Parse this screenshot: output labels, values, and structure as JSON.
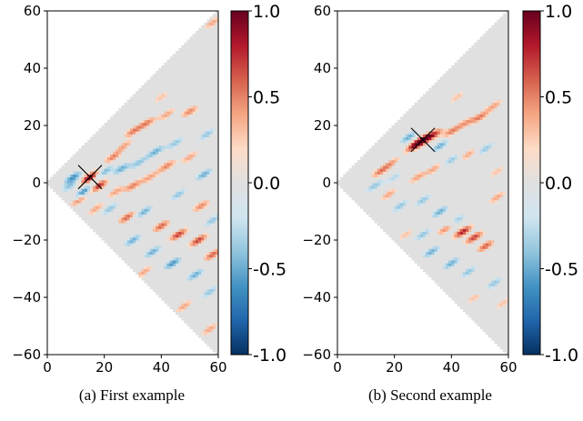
{
  "figure": {
    "captions": [
      "(a) First example",
      "(b) Second example"
    ]
  },
  "colormap": {
    "name": "RdBu_r",
    "stops": [
      "#053061",
      "#2166ac",
      "#4393c3",
      "#92c5de",
      "#d1e5f0",
      "#e0e0e0",
      "#fddbc7",
      "#f4a582",
      "#d6604d",
      "#b2182b",
      "#67001f"
    ],
    "neutral": "#e0e0e0"
  },
  "chart_data": [
    {
      "type": "heatmap",
      "caption": "(a) First example",
      "xlim": [
        0,
        60
      ],
      "ylim": [
        -60,
        60
      ],
      "xticks": [
        "0",
        "20",
        "40",
        "60"
      ],
      "yticks": [
        "60",
        "40",
        "20",
        "0",
        "-20",
        "-40",
        "-60"
      ],
      "colorbar": {
        "range": [
          -1.0,
          1.0
        ],
        "ticks": [
          "1.0",
          "0.5",
          "0.0",
          "-0.5",
          "-1.0"
        ]
      },
      "domain": "wedge |y| <= x",
      "marker": {
        "x": 15,
        "y": 2,
        "value": 1.0
      },
      "blobs": [
        {
          "x": 15,
          "y": 2,
          "v": 1.0
        },
        {
          "x": 18,
          "y": -1,
          "v": 0.8
        },
        {
          "x": 13,
          "y": -3,
          "v": -0.7
        },
        {
          "x": 9,
          "y": 2,
          "v": -0.6
        },
        {
          "x": 11,
          "y": -6,
          "v": 0.5
        },
        {
          "x": 20,
          "y": 4,
          "v": -0.5
        },
        {
          "x": 23,
          "y": 9,
          "v": 0.5
        },
        {
          "x": 27,
          "y": 13,
          "v": 0.4
        },
        {
          "x": 30,
          "y": 18,
          "v": 0.5
        },
        {
          "x": 35,
          "y": 21,
          "v": 0.5
        },
        {
          "x": 42,
          "y": 24,
          "v": 0.4
        },
        {
          "x": 50,
          "y": 25,
          "v": 0.5
        },
        {
          "x": 26,
          "y": 5,
          "v": -0.5
        },
        {
          "x": 32,
          "y": 7,
          "v": -0.4
        },
        {
          "x": 38,
          "y": 11,
          "v": -0.5
        },
        {
          "x": 45,
          "y": 14,
          "v": -0.4
        },
        {
          "x": 24,
          "y": -3,
          "v": 0.4
        },
        {
          "x": 30,
          "y": -1,
          "v": 0.5
        },
        {
          "x": 36,
          "y": 2,
          "v": 0.4
        },
        {
          "x": 42,
          "y": 6,
          "v": 0.5
        },
        {
          "x": 50,
          "y": 9,
          "v": 0.4
        },
        {
          "x": 22,
          "y": -9,
          "v": -0.4
        },
        {
          "x": 28,
          "y": -12,
          "v": 0.6
        },
        {
          "x": 34,
          "y": -10,
          "v": -0.5
        },
        {
          "x": 40,
          "y": -15,
          "v": 0.6
        },
        {
          "x": 46,
          "y": -18,
          "v": 0.7
        },
        {
          "x": 53,
          "y": -20,
          "v": 0.7
        },
        {
          "x": 58,
          "y": -25,
          "v": 0.6
        },
        {
          "x": 30,
          "y": -20,
          "v": -0.5
        },
        {
          "x": 37,
          "y": -24,
          "v": -0.5
        },
        {
          "x": 44,
          "y": -28,
          "v": -0.6
        },
        {
          "x": 52,
          "y": -32,
          "v": -0.5
        },
        {
          "x": 57,
          "y": -38,
          "v": -0.4
        },
        {
          "x": 46,
          "y": -4,
          "v": -0.4
        },
        {
          "x": 54,
          "y": -8,
          "v": 0.5
        },
        {
          "x": 58,
          "y": -13,
          "v": -0.4
        },
        {
          "x": 17,
          "y": -9,
          "v": 0.4
        },
        {
          "x": 8,
          "y": -1,
          "v": -0.4
        },
        {
          "x": 56,
          "y": 17,
          "v": -0.4
        },
        {
          "x": 34,
          "y": -31,
          "v": 0.4
        },
        {
          "x": 48,
          "y": -43,
          "v": 0.4
        },
        {
          "x": 57,
          "y": -51,
          "v": 0.4
        },
        {
          "x": 55,
          "y": 3,
          "v": -0.5
        },
        {
          "x": 40,
          "y": 30,
          "v": 0.3
        },
        {
          "x": 58,
          "y": 56,
          "v": 0.4
        }
      ]
    },
    {
      "type": "heatmap",
      "caption": "(b) Second example",
      "xlim": [
        0,
        60
      ],
      "ylim": [
        -60,
        60
      ],
      "xticks": [
        "0",
        "20",
        "40",
        "60"
      ],
      "yticks": [
        "60",
        "40",
        "20",
        "0",
        "-20",
        "-40",
        "-60"
      ],
      "colorbar": {
        "range": [
          -1.0,
          1.0
        ],
        "ticks": [
          "1.0",
          "0.5",
          "0.0",
          "-0.5",
          "-1.0"
        ]
      },
      "domain": "wedge |y| <= x",
      "marker": {
        "x": 30,
        "y": 15,
        "value": 1.0
      },
      "blobs": [
        {
          "x": 30,
          "y": 15,
          "v": 1.0
        },
        {
          "x": 27,
          "y": 13,
          "v": 0.7
        },
        {
          "x": 34,
          "y": 17,
          "v": 0.6
        },
        {
          "x": 25,
          "y": 16,
          "v": -0.5
        },
        {
          "x": 36,
          "y": 13,
          "v": -0.5
        },
        {
          "x": 40,
          "y": 18,
          "v": 0.5
        },
        {
          "x": 45,
          "y": 21,
          "v": 0.4
        },
        {
          "x": 50,
          "y": 23,
          "v": 0.5
        },
        {
          "x": 55,
          "y": 27,
          "v": 0.4
        },
        {
          "x": 42,
          "y": 30,
          "v": 0.3
        },
        {
          "x": 15,
          "y": 4,
          "v": 0.5
        },
        {
          "x": 19,
          "y": 7,
          "v": 0.4
        },
        {
          "x": 13,
          "y": -1,
          "v": -0.4
        },
        {
          "x": 18,
          "y": -4,
          "v": 0.4
        },
        {
          "x": 22,
          "y": -8,
          "v": -0.4
        },
        {
          "x": 28,
          "y": 2,
          "v": 0.4
        },
        {
          "x": 34,
          "y": 5,
          "v": 0.4
        },
        {
          "x": 40,
          "y": 8,
          "v": -0.4
        },
        {
          "x": 46,
          "y": 10,
          "v": 0.4
        },
        {
          "x": 52,
          "y": 12,
          "v": -0.4
        },
        {
          "x": 30,
          "y": -6,
          "v": -0.4
        },
        {
          "x": 36,
          "y": -10,
          "v": -0.5
        },
        {
          "x": 42,
          "y": -13,
          "v": -0.4
        },
        {
          "x": 38,
          "y": -16,
          "v": 0.5
        },
        {
          "x": 44,
          "y": -17,
          "v": 0.8
        },
        {
          "x": 48,
          "y": -19,
          "v": 0.7
        },
        {
          "x": 52,
          "y": -22,
          "v": 0.6
        },
        {
          "x": 30,
          "y": -18,
          "v": -0.4
        },
        {
          "x": 33,
          "y": -24,
          "v": -0.5
        },
        {
          "x": 40,
          "y": -28,
          "v": -0.5
        },
        {
          "x": 46,
          "y": -31,
          "v": -0.4
        },
        {
          "x": 55,
          "y": -35,
          "v": -0.4
        },
        {
          "x": 56,
          "y": -5,
          "v": 0.4
        },
        {
          "x": 58,
          "y": -42,
          "v": 0.3
        },
        {
          "x": 48,
          "y": -40,
          "v": 0.3
        },
        {
          "x": 24,
          "y": -18,
          "v": 0.3
        },
        {
          "x": 20,
          "y": 2,
          "v": -0.3
        },
        {
          "x": 56,
          "y": 4,
          "v": 0.3
        }
      ]
    }
  ]
}
